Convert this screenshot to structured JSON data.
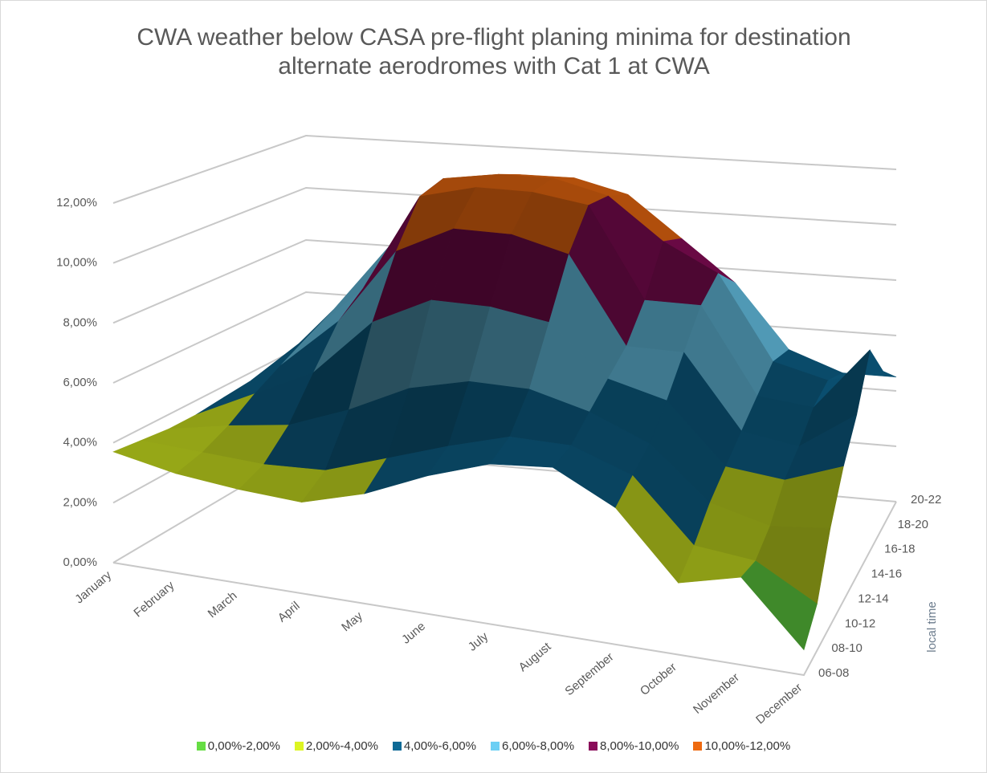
{
  "chart_data": {
    "type": "surface",
    "title": "CWA weather below CASA pre-flight planing minima for destination alternate aerodromes with Cat 1 at CWA",
    "categories": [
      "January",
      "February",
      "March",
      "April",
      "May",
      "June",
      "July",
      "August",
      "September",
      "October",
      "November",
      "December"
    ],
    "depth_label": "local time",
    "series": [
      {
        "name": "06-08",
        "values": [
          3.7,
          3.3,
          3.1,
          3.0,
          3.6,
          4.5,
          5.2,
          5.4,
          4.4,
          2.3,
          2.8,
          0.8
        ]
      },
      {
        "name": "08-10",
        "values": [
          3.6,
          3.5,
          3.4,
          3.5,
          4.2,
          4.9,
          5.5,
          5.5,
          4.8,
          2.8,
          2.6,
          1.5
        ]
      },
      {
        "name": "10-12",
        "values": [
          3.5,
          3.9,
          4.2,
          5.0,
          6.0,
          6.5,
          6.5,
          6.0,
          5.2,
          3.5,
          3.0,
          3.2
        ]
      },
      {
        "name": "12-14",
        "values": [
          3.5,
          4.5,
          5.5,
          7.5,
          8.5,
          8.5,
          8.2,
          6.5,
          6.0,
          4.0,
          3.8,
          4.5
        ]
      },
      {
        "name": "14-16",
        "values": [
          3.6,
          5.0,
          6.8,
          9.5,
          10.5,
          10.5,
          10.0,
          7.0,
          7.0,
          4.5,
          4.2,
          5.5
        ]
      },
      {
        "name": "16-18",
        "values": [
          3.7,
          5.5,
          7.5,
          11.0,
          11.5,
          11.5,
          11.2,
          8.0,
          8.0,
          5.0,
          4.8,
          7.0
        ]
      },
      {
        "name": "18-20",
        "values": [
          3.8,
          6.0,
          8.5,
          11.2,
          11.5,
          11.5,
          11.0,
          9.5,
          8.5,
          5.5,
          5.0,
          5.5
        ]
      },
      {
        "name": "20-22",
        "values": [
          3.8,
          6.5,
          7.8,
          10.5,
          11.0,
          11.0,
          10.5,
          9.0,
          7.5,
          5.2,
          4.5,
          4.5
        ]
      }
    ],
    "ylim": [
      0,
      12
    ],
    "yticks": [
      {
        "value": 0,
        "label": "0,00%"
      },
      {
        "value": 2,
        "label": "2,00%"
      },
      {
        "value": 4,
        "label": "4,00%"
      },
      {
        "value": 6,
        "label": "6,00%"
      },
      {
        "value": 8,
        "label": "8,00%"
      },
      {
        "value": 10,
        "label": "10,00%"
      },
      {
        "value": 12,
        "label": "12,00%"
      }
    ],
    "bands": [
      {
        "name": "0,00%-2,00%",
        "color": "#66dd44"
      },
      {
        "name": "2,00%-4,00%",
        "color": "#ddf522"
      },
      {
        "name": "4,00%-6,00%",
        "color": "#0e6a96"
      },
      {
        "name": "6,00%-8,00%",
        "color": "#6ccff4"
      },
      {
        "name": "8,00%-10,00%",
        "color": "#8a0c5a"
      },
      {
        "name": "10,00%-12,00%",
        "color": "#ee6a10"
      }
    ],
    "grid": true
  }
}
